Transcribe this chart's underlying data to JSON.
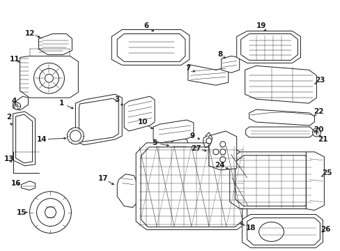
{
  "bg_color": "#ffffff",
  "line_color": "#1a1a1a",
  "line_width": 0.7,
  "fig_width": 4.89,
  "fig_height": 3.6,
  "dpi": 100
}
